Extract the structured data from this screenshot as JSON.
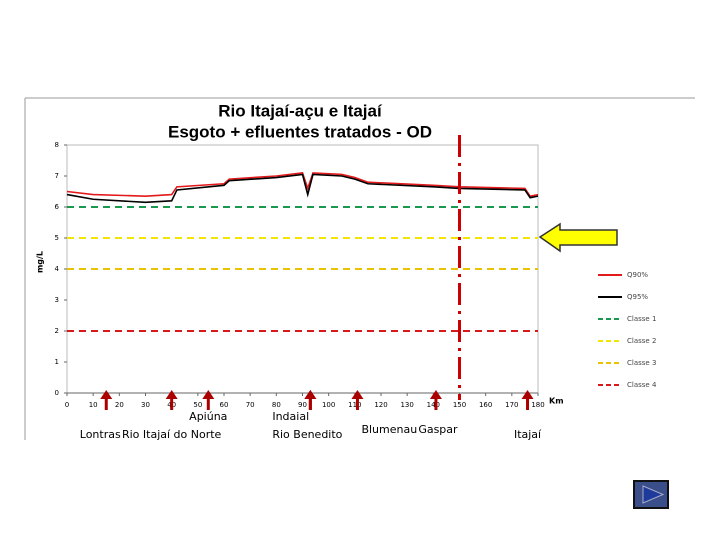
{
  "chart_data": {
    "type": "line",
    "title": "Rio Itajaí-açu e Itajaí",
    "subtitle": "Esgoto + efluentes tratados - OD",
    "y_label": "mg/L",
    "x_label": "Km",
    "x": [
      0,
      10,
      30,
      40,
      42,
      60,
      62,
      80,
      90,
      92,
      94,
      105,
      110,
      115,
      140,
      150,
      175,
      177,
      180
    ],
    "series": [
      {
        "name": "Q90%",
        "color": "#e31a1c",
        "values": [
          6.5,
          6.4,
          6.35,
          6.4,
          6.65,
          6.75,
          6.9,
          7.0,
          7.1,
          6.6,
          7.1,
          7.05,
          6.95,
          6.8,
          6.7,
          6.65,
          6.6,
          6.35,
          6.4
        ]
      },
      {
        "name": "Q95%",
        "color": "#000000",
        "values": [
          6.4,
          6.25,
          6.15,
          6.2,
          6.55,
          6.7,
          6.85,
          6.95,
          7.05,
          6.4,
          7.05,
          7.0,
          6.9,
          6.75,
          6.65,
          6.6,
          6.55,
          6.3,
          6.35
        ]
      }
    ],
    "thresholds": [
      {
        "name": "Classe 1",
        "color": "#1a9850",
        "value": 6
      },
      {
        "name": "Classe 2",
        "color": "#f2e600",
        "value": 5
      },
      {
        "name": "Classe 3",
        "color": "#e8c200",
        "value": 4
      },
      {
        "name": "Classe 4",
        "color": "#d7191c",
        "value": 2
      }
    ],
    "vline": 150,
    "annotations": [
      {
        "text": "Lontras",
        "x": 15
      },
      {
        "text": "Rio Itajaí do Norte",
        "x": 40
      },
      {
        "text": "Apiúna",
        "x": 54
      },
      {
        "text": "Indaial",
        "x": 93
      },
      {
        "text": "Rio Benedito",
        "x": 93
      },
      {
        "text": "Blumenau",
        "x": 111
      },
      {
        "text": "Gaspar",
        "x": 141
      },
      {
        "text": "Itajaí",
        "x": 176
      }
    ],
    "xlim": [
      0,
      180
    ],
    "xticks": [
      0,
      10,
      20,
      30,
      40,
      50,
      60,
      70,
      80,
      90,
      100,
      110,
      120,
      130,
      140,
      150,
      160,
      170,
      180
    ],
    "ylim": [
      0,
      8
    ],
    "yticks": [
      0,
      1,
      2,
      3,
      4,
      5,
      6,
      7,
      8
    ]
  }
}
